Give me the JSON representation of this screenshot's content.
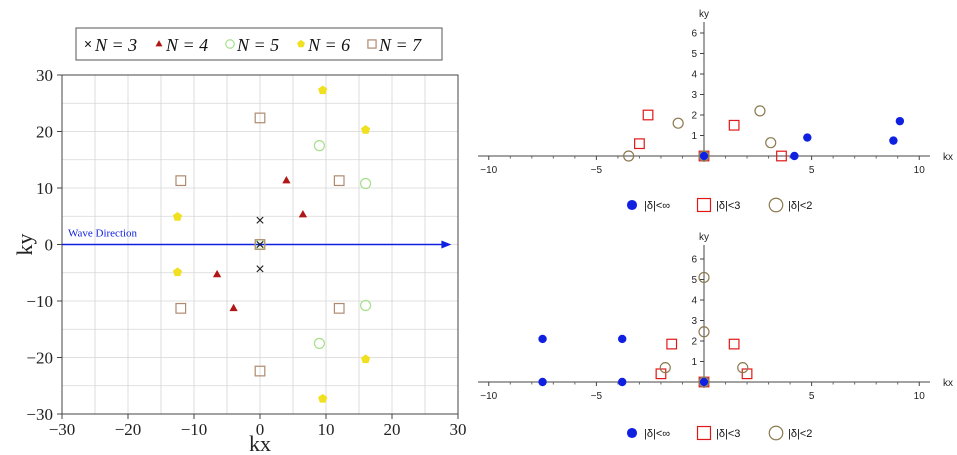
{
  "colors": {
    "N3": "#1a1a1a",
    "N4": "#b01717",
    "N5": "#a6e08a",
    "N6": "#f0e020",
    "N7": "#b08a6e",
    "blue": "#1020e0",
    "red_square": "#e01818",
    "olive_circle": "#8a7a50",
    "grid": "#cccccc"
  },
  "chart_data": [
    {
      "type": "scatter",
      "title": "",
      "xlabel": "kx",
      "ylabel": "ky",
      "xlim": [
        -30,
        30
      ],
      "ylim": [
        -30,
        30
      ],
      "xticks": [
        -30,
        -20,
        -10,
        0,
        10,
        20,
        30
      ],
      "yticks": [
        -30,
        -20,
        -10,
        0,
        10,
        20,
        30
      ],
      "xtick_labels": [
        "−30",
        "−20",
        "−10",
        "0",
        "10",
        "20",
        "30"
      ],
      "ytick_labels": [
        "−30",
        "−20",
        "−10",
        "0",
        "10",
        "20",
        "30"
      ],
      "grid": true,
      "legend_position": "top",
      "annotation": {
        "text": "Wave Direction",
        "arrow_from": [
          -30,
          0
        ],
        "arrow_to": [
          29,
          0
        ]
      },
      "series": [
        {
          "name": "N = 3",
          "marker": "cross",
          "color": "#1a1a1a",
          "points": [
            [
              0,
              4.3
            ],
            [
              0,
              0
            ],
            [
              0,
              -4.3
            ]
          ]
        },
        {
          "name": "N = 4",
          "marker": "triangle",
          "color": "#b01717",
          "points": [
            [
              4,
              11.3
            ],
            [
              6.5,
              5.3
            ],
            [
              -6.5,
              -5.3
            ],
            [
              -4,
              -11.3
            ]
          ]
        },
        {
          "name": "N = 5",
          "marker": "circle-open",
          "color": "#a6e08a",
          "points": [
            [
              9,
              17.5
            ],
            [
              16,
              10.8
            ],
            [
              0,
              0
            ],
            [
              16,
              -10.8
            ],
            [
              9,
              -17.5
            ]
          ]
        },
        {
          "name": "N = 6",
          "marker": "pentagon",
          "color": "#f0e020",
          "points": [
            [
              9.5,
              27.3
            ],
            [
              16,
              20.3
            ],
            [
              -12.5,
              4.9
            ],
            [
              -12.5,
              -4.9
            ],
            [
              16,
              -20.3
            ],
            [
              9.5,
              -27.3
            ]
          ]
        },
        {
          "name": "N = 7",
          "marker": "square-open",
          "color": "#b08a6e",
          "points": [
            [
              0,
              22.4
            ],
            [
              -12,
              11.3
            ],
            [
              12,
              11.3
            ],
            [
              0,
              0
            ],
            [
              -12,
              -11.3
            ],
            [
              12,
              -11.3
            ],
            [
              0,
              -22.4
            ]
          ]
        }
      ]
    },
    {
      "type": "scatter",
      "title": "",
      "xlabel": "kx",
      "ylabel": "ky",
      "xlim": [
        -10.5,
        10.5
      ],
      "ylim": [
        -0.5,
        6.3
      ],
      "xticks": [
        -10,
        -5,
        0,
        5,
        10
      ],
      "xtick_labels": [
        "−10",
        "−5",
        "",
        "5",
        "10"
      ],
      "yticks": [
        1,
        2,
        3,
        4,
        5,
        6
      ],
      "ytick_labels": [
        "1",
        "2",
        "3",
        "4",
        "5",
        "6"
      ],
      "grid": false,
      "legend_position": "bottom",
      "series": [
        {
          "name": "|δ|<∞",
          "marker": "circle-filled",
          "color": "#1020e0",
          "points": [
            [
              0,
              0
            ],
            [
              4.2,
              0
            ],
            [
              4.8,
              0.9
            ],
            [
              8.8,
              0.75
            ],
            [
              9.1,
              1.7
            ]
          ]
        },
        {
          "name": "|δ|<3",
          "marker": "square-open",
          "color": "#e01818",
          "points": [
            [
              -2.6,
              2.0
            ],
            [
              -3.0,
              0.6
            ],
            [
              0,
              0
            ],
            [
              1.4,
              1.5
            ],
            [
              3.6,
              0
            ]
          ]
        },
        {
          "name": "|δ|<2",
          "marker": "circle-open",
          "color": "#8a7a50",
          "points": [
            [
              -3.5,
              0
            ],
            [
              -1.2,
              1.6
            ],
            [
              0,
              0
            ],
            [
              2.6,
              2.2
            ],
            [
              3.1,
              0.65
            ]
          ]
        }
      ]
    },
    {
      "type": "scatter",
      "title": "",
      "xlabel": "kx",
      "ylabel": "ky",
      "xlim": [
        -10.5,
        10.5
      ],
      "ylim": [
        -0.5,
        6.3
      ],
      "xticks": [
        -10,
        -5,
        0,
        5,
        10
      ],
      "xtick_labels": [
        "−10",
        "−5",
        "",
        "5",
        "10"
      ],
      "yticks": [
        1,
        2,
        3,
        4,
        5,
        6
      ],
      "ytick_labels": [
        "1",
        "2",
        "3",
        "4",
        "5",
        "6"
      ],
      "grid": false,
      "legend_position": "bottom",
      "series": [
        {
          "name": "|δ|<∞",
          "marker": "circle-filled",
          "color": "#1020e0",
          "points": [
            [
              -7.5,
              2.1
            ],
            [
              -7.5,
              0
            ],
            [
              -3.8,
              2.1
            ],
            [
              -3.8,
              0
            ],
            [
              0,
              0
            ]
          ]
        },
        {
          "name": "|δ|<3",
          "marker": "square-open",
          "color": "#e01818",
          "points": [
            [
              -1.5,
              1.85
            ],
            [
              -2.0,
              0.4
            ],
            [
              0,
              0
            ],
            [
              1.4,
              1.85
            ],
            [
              2.0,
              0.4
            ]
          ]
        },
        {
          "name": "|δ|<2",
          "marker": "circle-open",
          "color": "#8a7a50",
          "points": [
            [
              -1.8,
              0.7
            ],
            [
              0,
              2.45
            ],
            [
              0,
              5.1
            ],
            [
              0,
              0
            ],
            [
              1.8,
              0.7
            ]
          ]
        }
      ]
    }
  ]
}
